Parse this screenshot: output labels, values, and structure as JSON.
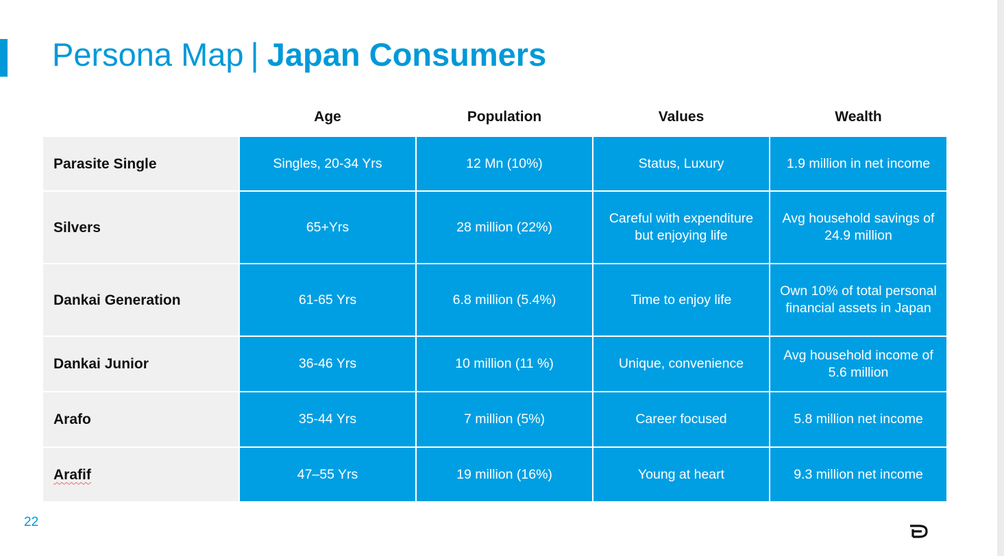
{
  "slide": {
    "title_light": "Persona Map",
    "title_separator": "|",
    "title_bold": "Japan Consumers",
    "page_number": "22",
    "accent_color": "#0099d8",
    "cell_color": "#009fe3",
    "label_bg_color": "#f0f0f0",
    "logo_icon": "brand-logo-icon"
  },
  "table": {
    "headers": [
      "",
      "Age",
      "Population",
      "Values",
      "Wealth"
    ],
    "rows": [
      {
        "label": "Parasite Single",
        "age": "Singles, 20-34 Yrs",
        "population": "12 Mn (10%)",
        "values": "Status, Luxury",
        "wealth": "1.9 million in net income"
      },
      {
        "label": "Silvers",
        "age": "65+Yrs",
        "population": "28 million (22%)",
        "values": "Careful with expenditure but enjoying life",
        "wealth": "Avg household savings of 24.9 million"
      },
      {
        "label": "Dankai Generation",
        "age": "61-65  Yrs",
        "population": "6.8 million (5.4%)",
        "values": "Time to enjoy life",
        "wealth": "Own 10% of total personal financial assets in Japan"
      },
      {
        "label": "Dankai Junior",
        "age": "36-46 Yrs",
        "population": "10  million (11 %)",
        "values": "Unique, convenience",
        "wealth": "Avg household income of  5.6 million"
      },
      {
        "label": "Arafo",
        "age": "35-44 Yrs",
        "population": "7  million (5%)",
        "values": "Career focused",
        "wealth": "5.8 million net income"
      },
      {
        "label": "Arafif",
        "age": "47–55 Yrs",
        "population": "19  million (16%)",
        "values": "Young at heart",
        "wealth": "9.3 million net income"
      }
    ]
  }
}
